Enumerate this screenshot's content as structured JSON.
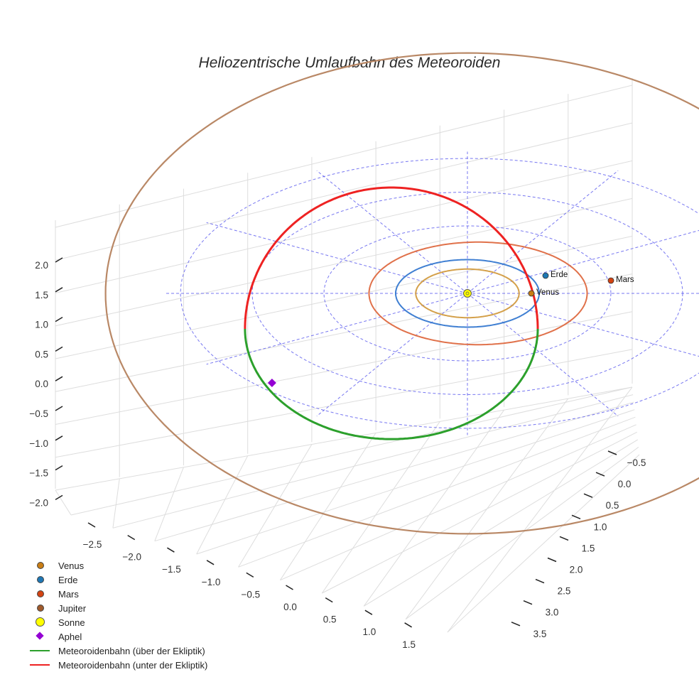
{
  "chart_data": {
    "type": "line",
    "title": "Heliozentrische Umlaufbahn des Meteoroiden",
    "axes": {
      "x_ticks": [
        "−2.5",
        "−2.0",
        "−1.5",
        "−1.0",
        "−0.5",
        "0.0",
        "0.5",
        "1.0",
        "1.5"
      ],
      "y_ticks": [
        "−0.5",
        "0.0",
        "0.5",
        "1.0",
        "1.5",
        "2.0",
        "2.5",
        "3.0",
        "3.5"
      ],
      "z_ticks": [
        "2.0",
        "1.5",
        "1.0",
        "0.5",
        "0.0",
        "−0.5",
        "−1.0",
        "−1.5",
        "−2.0"
      ],
      "xlim": [
        -2.8,
        1.7
      ],
      "ylim": [
        -0.7,
        3.7
      ],
      "zlim": [
        -2.2,
        2.2
      ],
      "grid": true
    },
    "ecliptic_grid": {
      "circle_radii_au": [
        1,
        2,
        3,
        4
      ],
      "radial_lines": 12
    },
    "planets": [
      {
        "name": "Venus",
        "orbit_radius_au": 0.72,
        "color": "#d4a04a",
        "marker_color": "#c97d14",
        "show_label": true
      },
      {
        "name": "Erde",
        "orbit_radius_au": 1.0,
        "color": "#3f7fd2",
        "marker_color": "#1f77b4",
        "show_label": true
      },
      {
        "name": "Mars",
        "orbit_radius_au": 1.52,
        "color": "#e0714a",
        "marker_color": "#d44312",
        "show_label": true
      },
      {
        "name": "Jupiter",
        "orbit_radius_au": 5.2,
        "color": "#b98866",
        "marker_color": "#a05a2c",
        "show_label": false
      }
    ],
    "sun": {
      "name": "Sonne",
      "color": "#ffff00"
    },
    "meteoroid": {
      "perihelion_au": 0.98,
      "aphelion_au": 3.1,
      "color_above": "#2ca02c",
      "color_below": "#ee2222",
      "aphel_color": "#9400d3"
    },
    "legend": [
      {
        "label": "Venus",
        "kind": "dot",
        "color": "#c97d14"
      },
      {
        "label": "Erde",
        "kind": "dot",
        "color": "#1f77b4"
      },
      {
        "label": "Mars",
        "kind": "dot",
        "color": "#d44312"
      },
      {
        "label": "Jupiter",
        "kind": "dot",
        "color": "#a05a2c"
      },
      {
        "label": "Sonne",
        "kind": "sun",
        "color": "#ffff00"
      },
      {
        "label": "Aphel",
        "kind": "diamond",
        "color": "#9400d3"
      },
      {
        "label": "Meteoroidenbahn (über der Ekliptik)",
        "kind": "line",
        "color": "#2ca02c"
      },
      {
        "label": "Meteoroidenbahn (unter der Ekliptik)",
        "kind": "line",
        "color": "#ee2222"
      }
    ]
  }
}
